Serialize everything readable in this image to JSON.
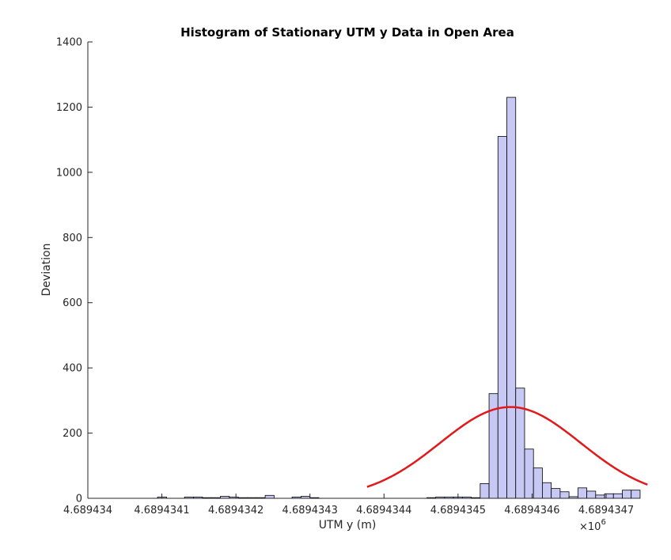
{
  "chart_data": {
    "type": "bar",
    "title": "Histogram of Stationary UTM y Data in Open Area",
    "xlabel": "UTM y (m)",
    "ylabel": "Deviation",
    "x_multiplier": "×10",
    "x_multiplier_exp": "6",
    "xlim": [
      4.689434,
      4.6894347
    ],
    "ylim": [
      0,
      1400
    ],
    "xticks": [
      4.689434,
      4.6894341,
      4.6894342,
      4.6894343,
      4.6894344,
      4.6894345,
      4.6894346,
      4.6894347
    ],
    "xtick_labels": [
      "4.689434",
      "4.6894341",
      "4.6894342",
      "4.6894343",
      "4.6894344",
      "4.6894345",
      "4.6894346",
      "4.6894347"
    ],
    "yticks": [
      0,
      200,
      400,
      600,
      800,
      1000,
      1200,
      1400
    ],
    "ytick_labels": [
      "0",
      "200",
      "400",
      "600",
      "800",
      "1000",
      "1200",
      "1400"
    ],
    "grid": false,
    "bar_color": "#c8c8f5",
    "bar_edge_color": "#000000",
    "fit_color": "#e11919",
    "bins": [
      {
        "x0": 4.6894340942,
        "x1": 4.6894341064,
        "v": 4
      },
      {
        "x0": 4.6894341306,
        "x1": 4.6894341427,
        "v": 4
      },
      {
        "x0": 4.6894341427,
        "x1": 4.6894341548,
        "v": 4
      },
      {
        "x0": 4.6894341548,
        "x1": 4.6894341669,
        "v": 2
      },
      {
        "x0": 4.6894341669,
        "x1": 4.689434179,
        "v": 2
      },
      {
        "x0": 4.689434179,
        "x1": 4.6894341911,
        "v": 6
      },
      {
        "x0": 4.6894341911,
        "x1": 4.6894342032,
        "v": 4
      },
      {
        "x0": 4.6894342032,
        "x1": 4.6894342153,
        "v": 2
      },
      {
        "x0": 4.6894342153,
        "x1": 4.6894342274,
        "v": 2
      },
      {
        "x0": 4.6894342274,
        "x1": 4.6894342395,
        "v": 2
      },
      {
        "x0": 4.6894342395,
        "x1": 4.6894342516,
        "v": 9
      },
      {
        "x0": 4.6894342758,
        "x1": 4.6894342879,
        "v": 4
      },
      {
        "x0": 4.6894342879,
        "x1": 4.6894343,
        "v": 6
      },
      {
        "x0": 4.6894343,
        "x1": 4.6894343121,
        "v": 2
      },
      {
        "x0": 4.6894344579,
        "x1": 4.6894344699,
        "v": 2
      },
      {
        "x0": 4.6894344699,
        "x1": 4.6894344819,
        "v": 4
      },
      {
        "x0": 4.6894344819,
        "x1": 4.6894344939,
        "v": 4
      },
      {
        "x0": 4.6894344939,
        "x1": 4.6894345059,
        "v": 4
      },
      {
        "x0": 4.6894345059,
        "x1": 4.6894345179,
        "v": 4
      },
      {
        "x0": 4.6894345179,
        "x1": 4.6894345299,
        "v": 2
      },
      {
        "x0": 4.6894345299,
        "x1": 4.6894345419,
        "v": 45
      },
      {
        "x0": 4.6894345419,
        "x1": 4.6894345539,
        "v": 321
      },
      {
        "x0": 4.6894345539,
        "x1": 4.6894345659,
        "v": 1110
      },
      {
        "x0": 4.6894345659,
        "x1": 4.6894345779,
        "v": 1230
      },
      {
        "x0": 4.6894345779,
        "x1": 4.6894345899,
        "v": 338
      },
      {
        "x0": 4.6894345899,
        "x1": 4.6894346019,
        "v": 151
      },
      {
        "x0": 4.6894346019,
        "x1": 4.6894346139,
        "v": 93
      },
      {
        "x0": 4.6894346139,
        "x1": 4.6894346259,
        "v": 48
      },
      {
        "x0": 4.6894346259,
        "x1": 4.6894346379,
        "v": 30
      },
      {
        "x0": 4.6894346379,
        "x1": 4.6894346499,
        "v": 20
      },
      {
        "x0": 4.6894346499,
        "x1": 4.6894346619,
        "v": 5
      },
      {
        "x0": 4.6894346619,
        "x1": 4.6894346739,
        "v": 32
      },
      {
        "x0": 4.6894346739,
        "x1": 4.6894346859,
        "v": 22
      },
      {
        "x0": 4.6894346859,
        "x1": 4.6894346979,
        "v": 10
      },
      {
        "x0": 4.6894346979,
        "x1": 4.6894347099,
        "v": 14
      },
      {
        "x0": 4.6894347099,
        "x1": 4.6894347219,
        "v": 14
      },
      {
        "x0": 4.6894347219,
        "x1": 4.6894347339,
        "v": 25
      },
      {
        "x0": 4.6894347339,
        "x1": 4.6894347459,
        "v": 25
      }
    ],
    "fit": {
      "type": "normal",
      "mean": 4.6894345707,
      "std": 9.5e-08,
      "peak": 280,
      "x_start": 4.6894343771,
      "x_end": 4.6894347559
    }
  }
}
